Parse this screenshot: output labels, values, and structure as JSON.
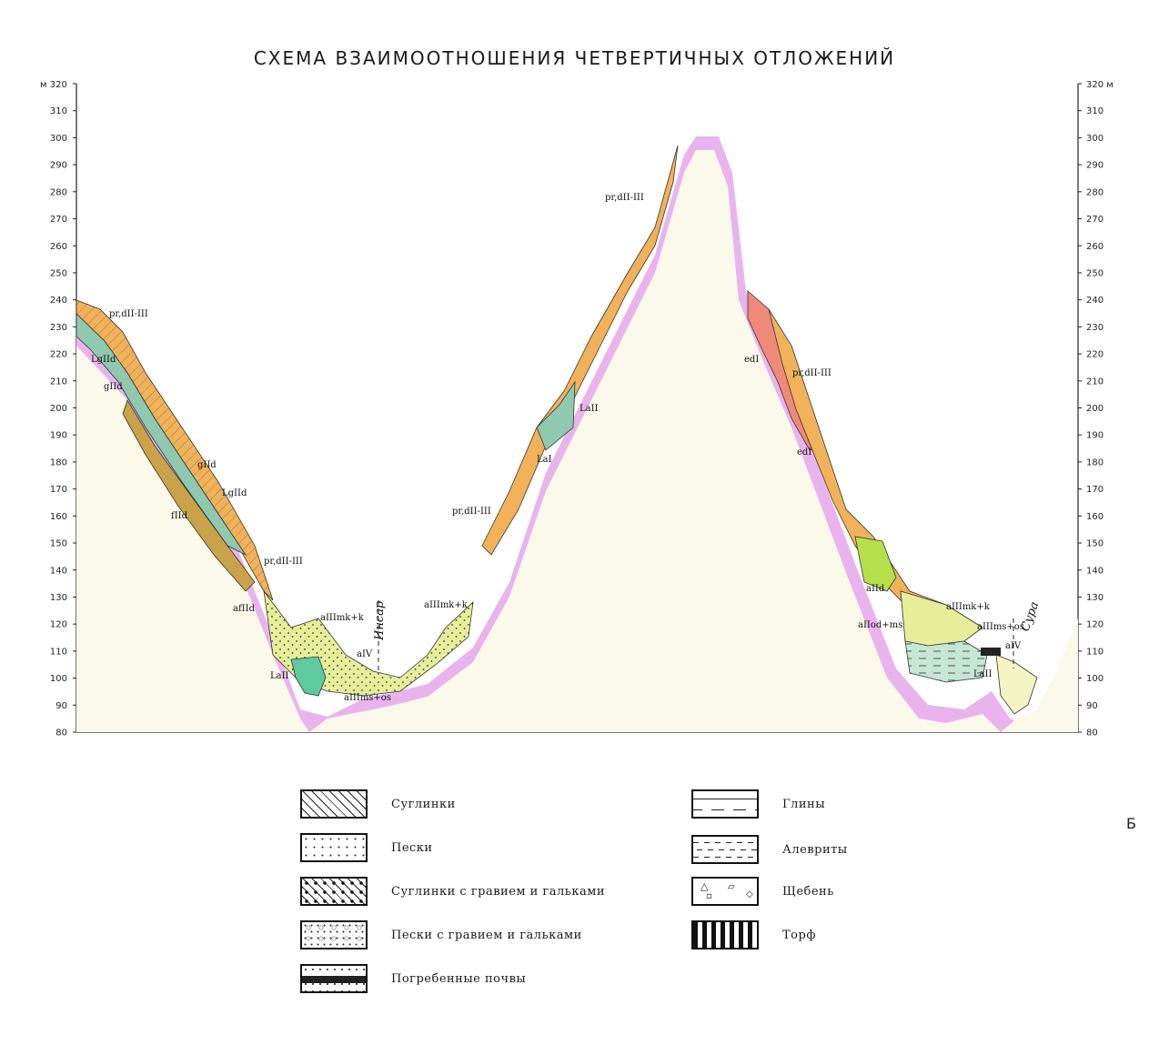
{
  "title": "СХЕМА ВЗАИМООТНОШЕНИЯ ЧЕТВЕРТИЧНЫХ ОТЛОЖЕНИЙ",
  "axis": {
    "unit": "м",
    "ticks": [
      "80",
      "90",
      "100",
      "110",
      "120",
      "130",
      "140",
      "150",
      "160",
      "170",
      "180",
      "190",
      "200",
      "210",
      "220",
      "230",
      "240",
      "250",
      "260",
      "270",
      "280",
      "290",
      "300",
      "310",
      "320"
    ],
    "top_left": "м 320",
    "top_right": "320 м"
  },
  "rivers": {
    "insar": "Инсар",
    "sura": "Сура"
  },
  "labels": {
    "pr_dII_III": "pr,dII-III",
    "LgIId1": "LgIId",
    "gIId": "gIId",
    "fIId": "fIId",
    "afIId": "afIId",
    "LaII": "LaII",
    "aIIImk_k": "aIIImk+k",
    "aIV": "aIV",
    "aIIIms_os": "aIIIms+os",
    "LaI": "LaI",
    "LaIIl": "LaII",
    "edI": "edI",
    "aIId": "aIId",
    "aIIod_ms": "aIIod+ms",
    "aIIIms_os_right": "aIIIms+os"
  },
  "legend": [
    {
      "id": "suglinki",
      "label": "Суглинки"
    },
    {
      "id": "peski",
      "label": "Пески"
    },
    {
      "id": "suglinki_gravel",
      "label": "Суглинки с гравием и гальками"
    },
    {
      "id": "peski_gravel",
      "label": "Пески с гравием и гальками"
    },
    {
      "id": "buried_soils",
      "label": "Погребенные почвы"
    },
    {
      "id": "gliny",
      "label": "Глины"
    },
    {
      "id": "alevrity",
      "label": "Алевриты"
    },
    {
      "id": "shcheben",
      "label": "Щебень"
    },
    {
      "id": "torf",
      "label": "Торф"
    }
  ],
  "side_letter": "Б",
  "colors": {
    "bedrock_pink": "#e9b4ee",
    "bedrock_fill": "#fbf9ea",
    "orange": "#f2b25a",
    "green_blue": "#8ec9b0",
    "olive": "#c9a24a",
    "yellow_green": "#e6ee9a",
    "bright_green": "#b6e04a",
    "red": "#ef8a7a",
    "light_yellow": "#f4f3c4",
    "teal": "#5fc9a0"
  }
}
